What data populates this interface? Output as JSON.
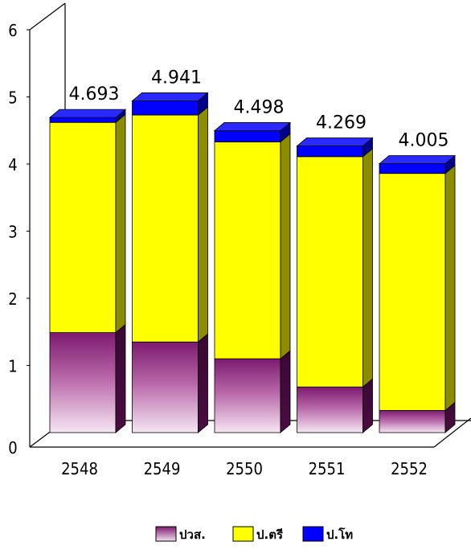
{
  "chart_data": {
    "type": "bar",
    "stacked": true,
    "three_d": true,
    "categories": [
      "2548",
      "2549",
      "2550",
      "2551",
      "2552"
    ],
    "series": [
      {
        "name": "ปวส.",
        "values": [
          1.49,
          1.35,
          1.1,
          0.68,
          0.33
        ]
      },
      {
        "name": "ป.ตรี",
        "values": [
          3.13,
          3.38,
          3.23,
          3.43,
          3.53
        ]
      },
      {
        "name": "ป.โท",
        "values": [
          0.073,
          0.211,
          0.168,
          0.159,
          0.145
        ]
      }
    ],
    "totals_labels": [
      "4.693",
      "4.941",
      "4.498",
      "4.269",
      "4.005"
    ],
    "y_ticks": [
      "0",
      "1",
      "2",
      "3",
      "4",
      "5",
      "6"
    ],
    "ylim": [
      0,
      6
    ],
    "grid": false,
    "legend_position": "bottom",
    "colors": {
      "ปวส.": "#8b1f7c",
      "ป.ตรี": "#ffff00",
      "ป.โท": "#0000ff"
    }
  }
}
